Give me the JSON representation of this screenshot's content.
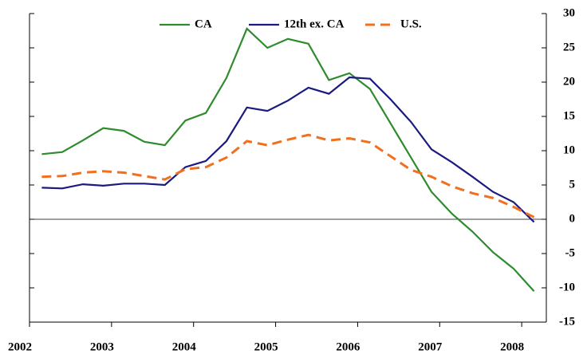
{
  "chart_data": {
    "type": "line",
    "x": [
      2002.15,
      2002.4,
      2002.65,
      2002.9,
      2003.15,
      2003.4,
      2003.65,
      2003.9,
      2004.15,
      2004.4,
      2004.65,
      2004.9,
      2005.15,
      2005.4,
      2005.65,
      2005.9,
      2006.15,
      2006.4,
      2006.65,
      2006.9,
      2007.15,
      2007.4,
      2007.65,
      2007.9,
      2008.15
    ],
    "series": [
      {
        "name": "CA",
        "color": "#2e8b2e",
        "dashed": false,
        "values": [
          9.5,
          9.8,
          11.5,
          13.3,
          12.9,
          11.3,
          10.8,
          14.4,
          15.5,
          20.6,
          27.8,
          25.0,
          26.3,
          25.6,
          20.3,
          21.3,
          19.0,
          14.0,
          9.0,
          4.0,
          0.8,
          -1.8,
          -4.8,
          -7.2,
          -10.5
        ]
      },
      {
        "name": "12th ex. CA",
        "color": "#1a1a80",
        "dashed": false,
        "values": [
          4.6,
          4.5,
          5.1,
          4.9,
          5.2,
          5.2,
          5.0,
          7.6,
          8.5,
          11.4,
          16.3,
          15.8,
          17.3,
          19.2,
          18.3,
          20.7,
          20.5,
          17.5,
          14.2,
          10.2,
          8.3,
          6.2,
          4.0,
          2.5,
          -0.4
        ]
      },
      {
        "name": "U.S.",
        "color": "#f07020",
        "dashed": true,
        "values": [
          6.2,
          6.3,
          6.8,
          7.0,
          6.8,
          6.3,
          5.8,
          7.3,
          7.6,
          9.0,
          11.4,
          10.8,
          11.6,
          12.3,
          11.5,
          11.8,
          11.2,
          9.2,
          7.2,
          6.2,
          4.8,
          3.8,
          3.1,
          1.8,
          0.3
        ]
      }
    ],
    "xlim": [
      2002,
      2008.3
    ],
    "xticks": [
      2002,
      2003,
      2004,
      2005,
      2006,
      2007,
      2008
    ],
    "ylim": [
      -15,
      30
    ],
    "yticks": [
      -15,
      -10,
      -5,
      0,
      5,
      10,
      15,
      20,
      25,
      30
    ],
    "legend": "top"
  }
}
